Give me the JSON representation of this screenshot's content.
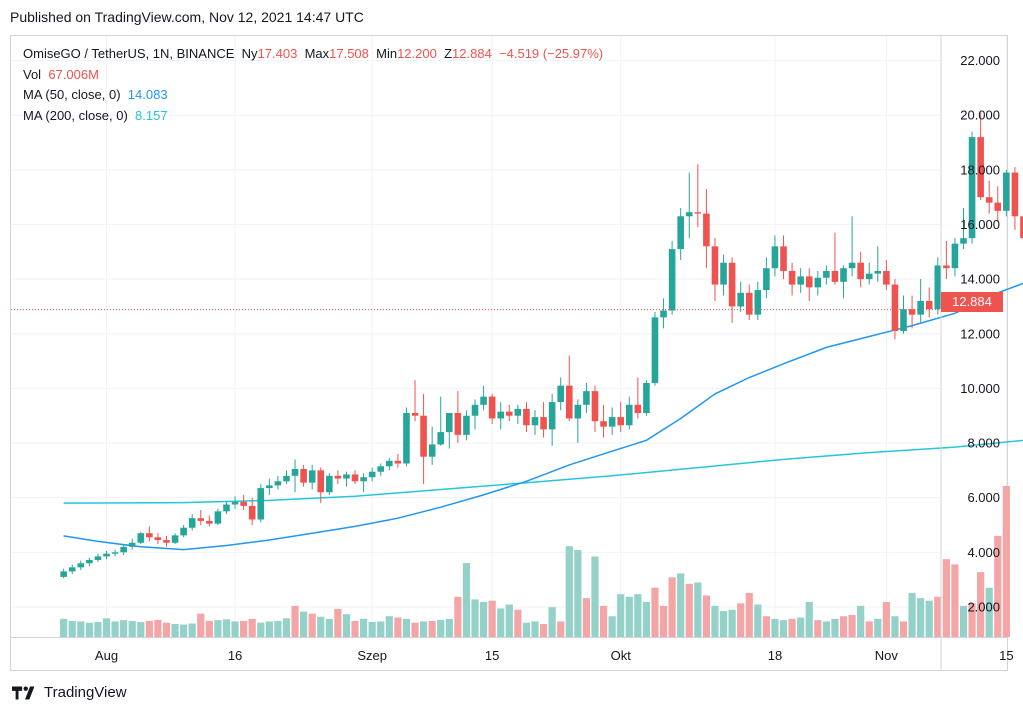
{
  "published": "Published on TradingView.com, Nov 12, 2021 14:47 UTC",
  "legend": {
    "symbol": "OmiseGO / TetherUS, 1N, BINANCE",
    "open_label": "Ny",
    "open": "17.403",
    "high_label": "Max",
    "high": "17.508",
    "low_label": "Min",
    "low": "12.200",
    "close_label": "Z",
    "close": "12.884",
    "change": "−4.519 (−25.97%)",
    "vol_label": "Vol",
    "vol": "67.006M",
    "ma50_label": "MA (50, close, 0)",
    "ma50": "14.083",
    "ma200_label": "MA (200, close, 0)",
    "ma200": "8.157"
  },
  "last_price": "12.884",
  "footer": {
    "brand": "TradingView"
  },
  "colors": {
    "up": "#26a69a",
    "down": "#ef5350",
    "ma50": "#2196f3",
    "ma200": "#26c6da",
    "vol_up": "#94d1c8",
    "vol_down": "#f4a6a6",
    "grid": "#f0f3fa"
  },
  "chart_data": {
    "type": "candlestick",
    "ylim": [
      0.9,
      22.9
    ],
    "y_ticks": [
      "22.000",
      "20.000",
      "18.000",
      "16.000",
      "14.000",
      "12.000",
      "10.000",
      "8.000",
      "6.000",
      "4.000",
      "2.000"
    ],
    "x_ticks": [
      "Aug",
      "16",
      "Szep",
      "15",
      "Okt",
      "18",
      "Nov",
      "15"
    ],
    "x_tick_days": [
      1,
      16,
      32,
      46,
      61,
      79,
      92,
      106
    ],
    "candles": [
      {
        "d": -4,
        "o": 3.1,
        "h": 3.4,
        "l": 3.05,
        "c": 3.3
      },
      {
        "d": -3,
        "o": 3.3,
        "h": 3.55,
        "l": 3.2,
        "c": 3.45
      },
      {
        "d": -2,
        "o": 3.45,
        "h": 3.7,
        "l": 3.35,
        "c": 3.6
      },
      {
        "d": -1,
        "o": 3.6,
        "h": 3.8,
        "l": 3.5,
        "c": 3.72
      },
      {
        "d": 0,
        "o": 3.72,
        "h": 3.95,
        "l": 3.65,
        "c": 3.85
      },
      {
        "d": 1,
        "o": 3.85,
        "h": 4.05,
        "l": 3.75,
        "c": 3.95
      },
      {
        "d": 2,
        "o": 3.95,
        "h": 4.1,
        "l": 3.85,
        "c": 4.0
      },
      {
        "d": 3,
        "o": 4.0,
        "h": 4.3,
        "l": 3.9,
        "c": 4.2
      },
      {
        "d": 4,
        "o": 4.2,
        "h": 4.5,
        "l": 4.1,
        "c": 4.35
      },
      {
        "d": 5,
        "o": 4.35,
        "h": 4.75,
        "l": 4.3,
        "c": 4.7
      },
      {
        "d": 6,
        "o": 4.7,
        "h": 4.95,
        "l": 4.4,
        "c": 4.55
      },
      {
        "d": 7,
        "o": 4.55,
        "h": 4.7,
        "l": 4.3,
        "c": 4.45
      },
      {
        "d": 8,
        "o": 4.45,
        "h": 4.6,
        "l": 4.2,
        "c": 4.35
      },
      {
        "d": 9,
        "o": 4.35,
        "h": 4.7,
        "l": 4.3,
        "c": 4.62
      },
      {
        "d": 10,
        "o": 4.62,
        "h": 5.0,
        "l": 4.55,
        "c": 4.9
      },
      {
        "d": 11,
        "o": 4.9,
        "h": 5.4,
        "l": 4.8,
        "c": 5.25
      },
      {
        "d": 12,
        "o": 5.25,
        "h": 5.55,
        "l": 5.0,
        "c": 5.15
      },
      {
        "d": 13,
        "o": 5.15,
        "h": 5.35,
        "l": 4.95,
        "c": 5.05
      },
      {
        "d": 14,
        "o": 5.05,
        "h": 5.6,
        "l": 5.0,
        "c": 5.5
      },
      {
        "d": 15,
        "o": 5.5,
        "h": 5.85,
        "l": 5.4,
        "c": 5.75
      },
      {
        "d": 16,
        "o": 5.75,
        "h": 6.05,
        "l": 5.6,
        "c": 5.85
      },
      {
        "d": 17,
        "o": 5.85,
        "h": 6.1,
        "l": 5.55,
        "c": 5.7
      },
      {
        "d": 18,
        "o": 5.7,
        "h": 6.0,
        "l": 5.0,
        "c": 5.2
      },
      {
        "d": 19,
        "o": 5.2,
        "h": 6.5,
        "l": 5.1,
        "c": 6.35
      },
      {
        "d": 20,
        "o": 6.35,
        "h": 6.7,
        "l": 6.1,
        "c": 6.45
      },
      {
        "d": 21,
        "o": 6.45,
        "h": 6.8,
        "l": 6.3,
        "c": 6.6
      },
      {
        "d": 22,
        "o": 6.6,
        "h": 7.0,
        "l": 6.5,
        "c": 6.8
      },
      {
        "d": 23,
        "o": 6.8,
        "h": 7.4,
        "l": 6.2,
        "c": 7.05
      },
      {
        "d": 24,
        "o": 7.05,
        "h": 7.2,
        "l": 6.4,
        "c": 6.55
      },
      {
        "d": 25,
        "o": 6.55,
        "h": 7.2,
        "l": 6.3,
        "c": 7.0
      },
      {
        "d": 26,
        "o": 7.0,
        "h": 7.1,
        "l": 5.8,
        "c": 6.2
      },
      {
        "d": 27,
        "o": 6.2,
        "h": 6.9,
        "l": 6.1,
        "c": 6.8
      },
      {
        "d": 28,
        "o": 6.8,
        "h": 7.0,
        "l": 6.5,
        "c": 6.7
      },
      {
        "d": 29,
        "o": 6.7,
        "h": 6.95,
        "l": 6.4,
        "c": 6.85
      },
      {
        "d": 30,
        "o": 6.85,
        "h": 7.0,
        "l": 6.5,
        "c": 6.6
      },
      {
        "d": 31,
        "o": 6.6,
        "h": 6.9,
        "l": 6.2,
        "c": 6.75
      },
      {
        "d": 32,
        "o": 6.75,
        "h": 7.1,
        "l": 6.6,
        "c": 6.95
      },
      {
        "d": 33,
        "o": 6.95,
        "h": 7.25,
        "l": 6.8,
        "c": 7.15
      },
      {
        "d": 34,
        "o": 7.15,
        "h": 7.45,
        "l": 7.0,
        "c": 7.35
      },
      {
        "d": 35,
        "o": 7.35,
        "h": 7.6,
        "l": 7.1,
        "c": 7.25
      },
      {
        "d": 36,
        "o": 7.25,
        "h": 9.3,
        "l": 7.15,
        "c": 9.1
      },
      {
        "d": 37,
        "o": 9.1,
        "h": 10.3,
        "l": 8.8,
        "c": 9.0
      },
      {
        "d": 38,
        "o": 9.0,
        "h": 9.8,
        "l": 6.5,
        "c": 7.5
      },
      {
        "d": 39,
        "o": 7.5,
        "h": 8.6,
        "l": 7.2,
        "c": 7.95
      },
      {
        "d": 40,
        "o": 7.95,
        "h": 9.7,
        "l": 7.9,
        "c": 8.4
      },
      {
        "d": 41,
        "o": 8.4,
        "h": 9.1,
        "l": 7.8,
        "c": 9.1
      },
      {
        "d": 42,
        "o": 9.1,
        "h": 9.9,
        "l": 8.0,
        "c": 8.3
      },
      {
        "d": 43,
        "o": 8.3,
        "h": 9.2,
        "l": 8.1,
        "c": 9.0
      },
      {
        "d": 44,
        "o": 9.0,
        "h": 9.6,
        "l": 8.5,
        "c": 9.4
      },
      {
        "d": 45,
        "o": 9.4,
        "h": 10.1,
        "l": 9.2,
        "c": 9.7
      },
      {
        "d": 46,
        "o": 9.7,
        "h": 9.8,
        "l": 8.7,
        "c": 8.9
      },
      {
        "d": 47,
        "o": 8.9,
        "h": 9.5,
        "l": 8.5,
        "c": 9.15
      },
      {
        "d": 48,
        "o": 9.15,
        "h": 9.4,
        "l": 8.8,
        "c": 9.0
      },
      {
        "d": 49,
        "o": 9.0,
        "h": 9.4,
        "l": 8.7,
        "c": 9.25
      },
      {
        "d": 50,
        "o": 9.25,
        "h": 9.5,
        "l": 8.4,
        "c": 8.65
      },
      {
        "d": 51,
        "o": 8.65,
        "h": 9.2,
        "l": 8.3,
        "c": 8.95
      },
      {
        "d": 52,
        "o": 8.95,
        "h": 9.5,
        "l": 8.2,
        "c": 8.5
      },
      {
        "d": 53,
        "o": 8.5,
        "h": 9.8,
        "l": 7.9,
        "c": 9.5
      },
      {
        "d": 54,
        "o": 9.5,
        "h": 10.4,
        "l": 9.2,
        "c": 10.1
      },
      {
        "d": 55,
        "o": 10.1,
        "h": 11.2,
        "l": 8.8,
        "c": 8.9
      },
      {
        "d": 56,
        "o": 8.9,
        "h": 9.6,
        "l": 8.0,
        "c": 9.4
      },
      {
        "d": 57,
        "o": 9.4,
        "h": 10.2,
        "l": 9.1,
        "c": 9.9
      },
      {
        "d": 58,
        "o": 9.9,
        "h": 10.1,
        "l": 8.4,
        "c": 8.8
      },
      {
        "d": 59,
        "o": 8.8,
        "h": 9.4,
        "l": 8.2,
        "c": 8.6
      },
      {
        "d": 60,
        "o": 8.6,
        "h": 9.3,
        "l": 8.3,
        "c": 8.95
      },
      {
        "d": 61,
        "o": 8.95,
        "h": 9.5,
        "l": 8.4,
        "c": 8.65
      },
      {
        "d": 62,
        "o": 8.65,
        "h": 9.7,
        "l": 8.5,
        "c": 9.4
      },
      {
        "d": 63,
        "o": 9.4,
        "h": 10.4,
        "l": 8.9,
        "c": 9.1
      },
      {
        "d": 64,
        "o": 9.1,
        "h": 10.3,
        "l": 9.0,
        "c": 10.2
      },
      {
        "d": 65,
        "o": 10.2,
        "h": 12.8,
        "l": 10.1,
        "c": 12.6
      },
      {
        "d": 66,
        "o": 12.6,
        "h": 13.3,
        "l": 12.2,
        "c": 12.85
      },
      {
        "d": 67,
        "o": 12.85,
        "h": 15.4,
        "l": 12.7,
        "c": 15.1
      },
      {
        "d": 68,
        "o": 15.1,
        "h": 16.6,
        "l": 14.7,
        "c": 16.3
      },
      {
        "d": 69,
        "o": 16.3,
        "h": 17.9,
        "l": 15.5,
        "c": 16.45
      },
      {
        "d": 70,
        "o": 16.45,
        "h": 18.2,
        "l": 15.9,
        "c": 16.4
      },
      {
        "d": 71,
        "o": 16.4,
        "h": 17.3,
        "l": 14.4,
        "c": 15.2
      },
      {
        "d": 72,
        "o": 15.2,
        "h": 15.5,
        "l": 13.2,
        "c": 13.8
      },
      {
        "d": 73,
        "o": 13.8,
        "h": 14.9,
        "l": 13.4,
        "c": 14.6
      },
      {
        "d": 74,
        "o": 14.6,
        "h": 14.8,
        "l": 12.4,
        "c": 13.0
      },
      {
        "d": 75,
        "o": 13.0,
        "h": 13.9,
        "l": 12.8,
        "c": 13.5
      },
      {
        "d": 76,
        "o": 13.5,
        "h": 13.8,
        "l": 12.5,
        "c": 12.7
      },
      {
        "d": 77,
        "o": 12.7,
        "h": 13.9,
        "l": 12.5,
        "c": 13.6
      },
      {
        "d": 78,
        "o": 13.6,
        "h": 14.8,
        "l": 13.3,
        "c": 14.4
      },
      {
        "d": 79,
        "o": 14.4,
        "h": 15.6,
        "l": 14.1,
        "c": 15.2
      },
      {
        "d": 80,
        "o": 15.2,
        "h": 15.6,
        "l": 14.0,
        "c": 14.3
      },
      {
        "d": 81,
        "o": 14.3,
        "h": 14.6,
        "l": 13.4,
        "c": 13.8
      },
      {
        "d": 82,
        "o": 13.8,
        "h": 14.4,
        "l": 13.5,
        "c": 14.1
      },
      {
        "d": 83,
        "o": 14.1,
        "h": 14.4,
        "l": 13.2,
        "c": 13.7
      },
      {
        "d": 84,
        "o": 13.7,
        "h": 14.3,
        "l": 13.4,
        "c": 14.05
      },
      {
        "d": 85,
        "o": 14.05,
        "h": 14.5,
        "l": 13.8,
        "c": 14.3
      },
      {
        "d": 86,
        "o": 14.3,
        "h": 15.7,
        "l": 13.8,
        "c": 13.9
      },
      {
        "d": 87,
        "o": 13.9,
        "h": 14.5,
        "l": 13.3,
        "c": 14.4
      },
      {
        "d": 88,
        "o": 14.4,
        "h": 16.3,
        "l": 14.1,
        "c": 14.6
      },
      {
        "d": 89,
        "o": 14.6,
        "h": 15.0,
        "l": 13.7,
        "c": 14.0
      },
      {
        "d": 90,
        "o": 14.0,
        "h": 14.6,
        "l": 13.8,
        "c": 14.2
      },
      {
        "d": 91,
        "o": 14.2,
        "h": 15.2,
        "l": 13.9,
        "c": 14.3
      },
      {
        "d": 92,
        "o": 14.3,
        "h": 14.7,
        "l": 13.6,
        "c": 13.8
      },
      {
        "d": 93,
        "o": 13.8,
        "h": 14.0,
        "l": 11.8,
        "c": 12.1
      },
      {
        "d": 94,
        "o": 12.1,
        "h": 13.4,
        "l": 12.0,
        "c": 12.9
      },
      {
        "d": 95,
        "o": 12.9,
        "h": 13.4,
        "l": 12.2,
        "c": 12.7
      },
      {
        "d": 96,
        "o": 12.7,
        "h": 14.0,
        "l": 12.4,
        "c": 13.2
      },
      {
        "d": 97,
        "o": 13.2,
        "h": 13.7,
        "l": 12.6,
        "c": 12.9
      },
      {
        "d": 98,
        "o": 12.9,
        "h": 14.8,
        "l": 12.7,
        "c": 14.5
      },
      {
        "d": 99,
        "o": 14.5,
        "h": 15.4,
        "l": 14.0,
        "c": 14.4
      },
      {
        "d": 100,
        "o": 14.4,
        "h": 15.5,
        "l": 14.1,
        "c": 15.3
      },
      {
        "d": 101,
        "o": 15.3,
        "h": 16.6,
        "l": 15.1,
        "c": 15.5
      },
      {
        "d": 102,
        "o": 15.5,
        "h": 19.4,
        "l": 15.3,
        "c": 19.2
      },
      {
        "d": 103,
        "o": 19.2,
        "h": 20.1,
        "l": 16.9,
        "c": 17.0
      },
      {
        "d": 104,
        "o": 17.0,
        "h": 17.6,
        "l": 16.4,
        "c": 16.8
      },
      {
        "d": 105,
        "o": 16.8,
        "h": 17.4,
        "l": 16.1,
        "c": 16.5
      },
      {
        "d": 106,
        "o": 16.5,
        "h": 18.0,
        "l": 16.3,
        "c": 17.9
      },
      {
        "d": 107,
        "o": 17.9,
        "h": 18.1,
        "l": 15.8,
        "c": 16.3
      },
      {
        "d": 108,
        "o": 16.3,
        "h": 17.6,
        "l": 15.2,
        "c": 15.5
      },
      {
        "d": 109,
        "o": 15.5,
        "h": 19.7,
        "l": 15.0,
        "c": 17.4
      },
      {
        "d": 110,
        "o": 17.4,
        "h": 17.51,
        "l": 12.2,
        "c": 12.88
      }
    ],
    "ma50": [
      [
        -4,
        4.6
      ],
      [
        0,
        4.4
      ],
      [
        5,
        4.2
      ],
      [
        10,
        4.1
      ],
      [
        15,
        4.25
      ],
      [
        20,
        4.45
      ],
      [
        25,
        4.7
      ],
      [
        30,
        4.95
      ],
      [
        35,
        5.25
      ],
      [
        40,
        5.65
      ],
      [
        45,
        6.1
      ],
      [
        50,
        6.6
      ],
      [
        55,
        7.2
      ],
      [
        60,
        7.7
      ],
      [
        64,
        8.1
      ],
      [
        68,
        8.9
      ],
      [
        72,
        9.8
      ],
      [
        76,
        10.4
      ],
      [
        80,
        10.9
      ],
      [
        85,
        11.5
      ],
      [
        90,
        11.9
      ],
      [
        95,
        12.3
      ],
      [
        100,
        12.75
      ],
      [
        105,
        13.5
      ],
      [
        110,
        14.08
      ]
    ],
    "ma200": [
      [
        -4,
        5.8
      ],
      [
        10,
        5.82
      ],
      [
        20,
        5.9
      ],
      [
        30,
        6.05
      ],
      [
        40,
        6.3
      ],
      [
        50,
        6.55
      ],
      [
        60,
        6.8
      ],
      [
        70,
        7.1
      ],
      [
        80,
        7.4
      ],
      [
        90,
        7.65
      ],
      [
        100,
        7.85
      ],
      [
        110,
        8.16
      ]
    ],
    "volume_max": 5.82,
    "volume": [
      0.7,
      0.62,
      0.6,
      0.55,
      0.58,
      0.72,
      0.6,
      0.65,
      0.62,
      0.58,
      0.62,
      0.66,
      0.55,
      0.5,
      0.48,
      0.52,
      0.9,
      0.62,
      0.65,
      0.68,
      0.6,
      0.62,
      0.7,
      0.55,
      0.6,
      0.62,
      0.72,
      1.2,
      0.98,
      0.9,
      0.78,
      0.7,
      1.08,
      0.88,
      0.62,
      0.7,
      0.58,
      0.6,
      0.8,
      0.75,
      0.7,
      0.55,
      0.6,
      0.62,
      0.66,
      0.7,
      1.55,
      2.85,
      1.45,
      1.35,
      1.4,
      1.1,
      1.25,
      1.05,
      0.55,
      0.6,
      0.5,
      1.15,
      0.6,
      3.5,
      3.35,
      1.5,
      3.1,
      1.2,
      0.8,
      1.65,
      1.55,
      1.65,
      1.35,
      1.9,
      1.2,
      2.3,
      2.45,
      2.05,
      2.1,
      1.6,
      1.2,
      1.0,
      1.05,
      1.3,
      1.7,
      1.25,
      0.8,
      0.7,
      0.65,
      0.7,
      0.75,
      1.35,
      0.65,
      0.6,
      0.7,
      0.8,
      0.85,
      1.2,
      0.6,
      0.7,
      1.35,
      0.8,
      0.6,
      1.7,
      1.5,
      1.4,
      1.55,
      3.0,
      2.8,
      1.2,
      1.3,
      2.5,
      1.9,
      3.9,
      5.82
    ],
    "volume_up": [
      1,
      1,
      1,
      1,
      1,
      1,
      1,
      1,
      1,
      1,
      0,
      0,
      0,
      1,
      1,
      1,
      0,
      0,
      1,
      1,
      1,
      0,
      0,
      1,
      1,
      1,
      1,
      0,
      1,
      0,
      1,
      1,
      0,
      1,
      0,
      1,
      1,
      1,
      1,
      0,
      1,
      0,
      1,
      0,
      1,
      1,
      0,
      1,
      1,
      1,
      0,
      1,
      1,
      0,
      1,
      1,
      0,
      1,
      0,
      1,
      1,
      0,
      1,
      0,
      1,
      1,
      1,
      1,
      1,
      0,
      0,
      0,
      1,
      0,
      1,
      0,
      1,
      1,
      1,
      0,
      0,
      1,
      0,
      1,
      1,
      0,
      1,
      1,
      0,
      1,
      1,
      0,
      0,
      1,
      0,
      1,
      0,
      1,
      0,
      1,
      1,
      1,
      0,
      0,
      0,
      1,
      0,
      0,
      1,
      0,
      0
    ]
  }
}
